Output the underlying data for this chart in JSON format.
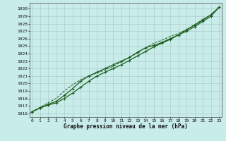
{
  "x": [
    0,
    1,
    2,
    3,
    4,
    5,
    6,
    7,
    8,
    9,
    10,
    11,
    12,
    13,
    14,
    15,
    16,
    17,
    18,
    19,
    20,
    21,
    22,
    23
  ],
  "line1": [
    1016.2,
    1016.7,
    1017.1,
    1017.4,
    1018.0,
    1018.7,
    1019.5,
    1020.3,
    1021.0,
    1021.5,
    1022.0,
    1022.5,
    1023.1,
    1023.7,
    1024.3,
    1024.9,
    1025.4,
    1025.9,
    1026.5,
    1027.2,
    1027.8,
    1028.5,
    1029.2,
    1030.2
  ],
  "line2": [
    1016.2,
    1016.7,
    1017.2,
    1017.6,
    1018.4,
    1019.3,
    1020.3,
    1021.0,
    1021.5,
    1022.0,
    1022.5,
    1023.0,
    1023.5,
    1024.2,
    1024.8,
    1025.1,
    1025.5,
    1026.0,
    1026.5,
    1027.0,
    1027.6,
    1028.3,
    1029.0,
    1030.2
  ],
  "line3": [
    1016.2,
    1016.8,
    1017.4,
    1018.0,
    1019.0,
    1019.8,
    1020.5,
    1021.0,
    1021.4,
    1021.8,
    1022.3,
    1022.9,
    1023.5,
    1024.1,
    1024.8,
    1025.4,
    1025.8,
    1026.3,
    1026.7,
    1027.2,
    1027.9,
    1028.6,
    1029.2,
    1030.2
  ],
  "line_color": "#1e5c1e",
  "bg_color": "#c8ecea",
  "grid_color": "#a8c8c0",
  "xlabel": "Graphe pression niveau de la mer (hPa)",
  "ylim": [
    1015.5,
    1030.8
  ],
  "xlim": [
    -0.3,
    23.3
  ],
  "yticks": [
    1016,
    1017,
    1018,
    1019,
    1020,
    1021,
    1022,
    1023,
    1024,
    1025,
    1026,
    1027,
    1028,
    1029,
    1030
  ],
  "xticks": [
    0,
    1,
    2,
    3,
    4,
    5,
    6,
    7,
    8,
    9,
    10,
    11,
    12,
    13,
    14,
    15,
    16,
    17,
    18,
    19,
    20,
    21,
    22,
    23
  ]
}
